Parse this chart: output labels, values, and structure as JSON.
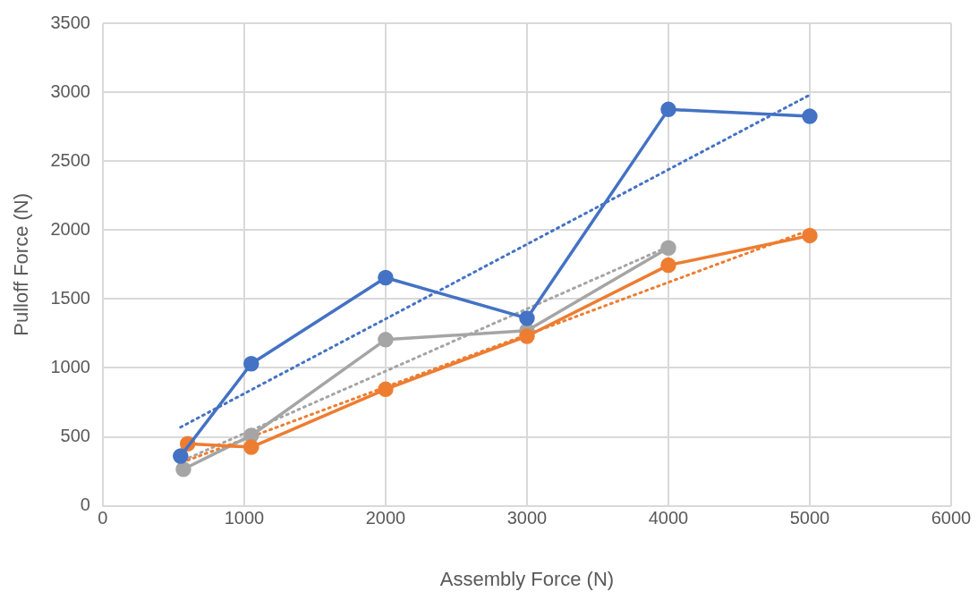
{
  "chart_data": {
    "type": "line",
    "xlabel": "Assembly Force (N)",
    "ylabel": "Pulloff Force (N)",
    "xlim": [
      0,
      6000
    ],
    "xticks": [
      0,
      1000,
      2000,
      3000,
      4000,
      5000,
      6000
    ],
    "ylim": [
      0,
      3500
    ],
    "yticks": [
      0,
      500,
      1000,
      1500,
      2000,
      2500,
      3000,
      3500
    ],
    "grid": true,
    "legend": false,
    "marker": "circle",
    "line_style": "solid",
    "series": [
      {
        "color": "#4472c4",
        "x": [
          550,
          1050,
          2000,
          3000,
          4000,
          5000
        ],
        "values": [
          360,
          1030,
          1655,
          1360,
          2875,
          2825
        ]
      },
      {
        "color": "#ed7d31",
        "x": [
          600,
          1050,
          2000,
          3000,
          4000,
          5000
        ],
        "values": [
          450,
          425,
          845,
          1230,
          1745,
          1960
        ]
      },
      {
        "color": "#a5a5a5",
        "x": [
          570,
          1050,
          2000,
          3000,
          4000
        ],
        "values": [
          265,
          510,
          1205,
          1270,
          1870
        ]
      },
      {
        "color": "#4472c4",
        "x": [
          550,
          5000
        ],
        "values": [
          570,
          2980
        ],
        "marker": "none",
        "line_style": "dotted"
      },
      {
        "color": "#ed7d31",
        "x": [
          600,
          5000
        ],
        "values": [
          330,
          2000
        ],
        "marker": "none",
        "line_style": "dotted"
      },
      {
        "color": "#a5a5a5",
        "x": [
          570,
          4000
        ],
        "values": [
          330,
          1880
        ],
        "marker": "none",
        "line_style": "dotted"
      }
    ]
  }
}
